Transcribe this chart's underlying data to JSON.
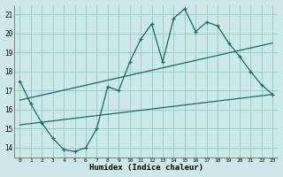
{
  "xlabel": "Humidex (Indice chaleur)",
  "bg_color": "#cce8e8",
  "grid_color": "#99cccc",
  "line_color": "#1a6868",
  "xlim": [
    -0.5,
    23.5
  ],
  "ylim": [
    13.5,
    21.5
  ],
  "xticks": [
    0,
    1,
    2,
    3,
    4,
    5,
    6,
    7,
    8,
    9,
    10,
    11,
    12,
    13,
    14,
    15,
    16,
    17,
    18,
    19,
    20,
    21,
    22,
    23
  ],
  "yticks": [
    14,
    15,
    16,
    17,
    18,
    19,
    20,
    21
  ],
  "line1_x": [
    0,
    1,
    2,
    3,
    4,
    5,
    6,
    7,
    8,
    9,
    10,
    11,
    12,
    13,
    14,
    15,
    16,
    17,
    18,
    19,
    20,
    21,
    22,
    23
  ],
  "line1_y": [
    17.5,
    16.3,
    15.3,
    14.5,
    13.9,
    13.8,
    14.0,
    15.0,
    17.2,
    17.0,
    18.5,
    19.7,
    20.5,
    18.5,
    20.8,
    21.3,
    20.1,
    20.6,
    20.4,
    19.5,
    18.8,
    18.0,
    17.3,
    16.8
  ],
  "line2_x": [
    0,
    23
  ],
  "line2_y": [
    16.5,
    19.5
  ],
  "line3_x": [
    0,
    23
  ],
  "line3_y": [
    15.2,
    16.8
  ]
}
